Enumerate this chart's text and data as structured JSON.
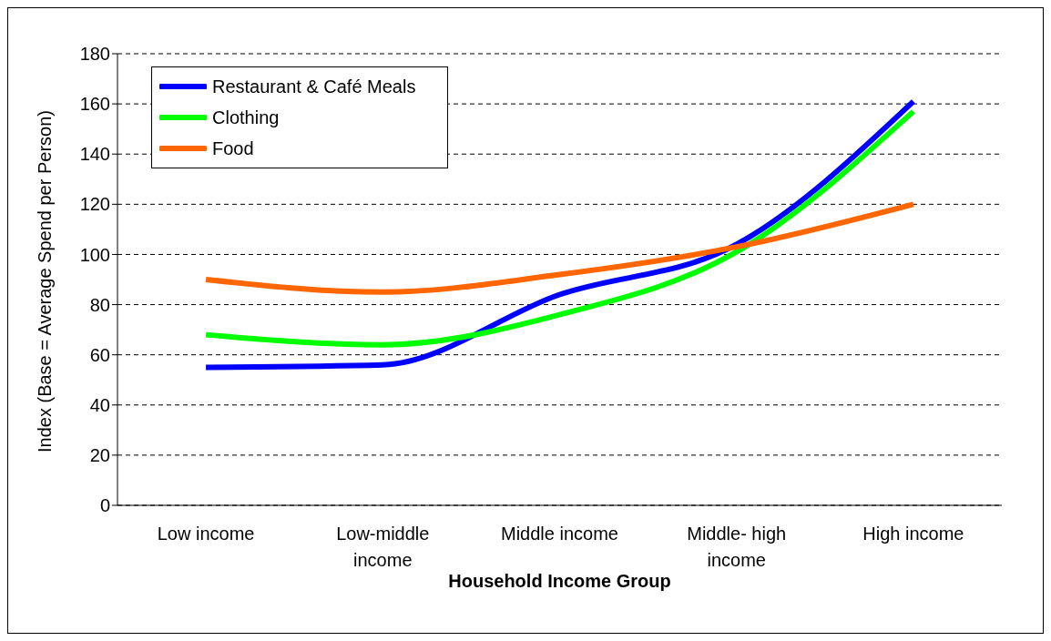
{
  "chart_data": {
    "type": "line",
    "xlabel": "Household Income Group",
    "ylabel": "Index (Base = Average Spend per Person)",
    "categories": [
      "Low income",
      "Low-middle income",
      "Middle income",
      "Middle- high income",
      "High income"
    ],
    "series": [
      {
        "name": "Restaurant & Café Meals",
        "color": "#0000ff",
        "values": [
          55,
          56,
          84,
          104,
          161
        ]
      },
      {
        "name": "Clothing",
        "color": "#00ff00",
        "values": [
          68,
          64,
          76,
          101,
          157
        ]
      },
      {
        "name": "Food",
        "color": "#ff6600",
        "values": [
          90,
          85,
          92,
          103,
          120
        ]
      }
    ],
    "ylim": [
      0,
      180
    ],
    "yticks": [
      0,
      20,
      40,
      60,
      80,
      100,
      120,
      140,
      160,
      180
    ],
    "grid": "y",
    "legend": "top left",
    "marker": "none",
    "line_style": "solid"
  }
}
